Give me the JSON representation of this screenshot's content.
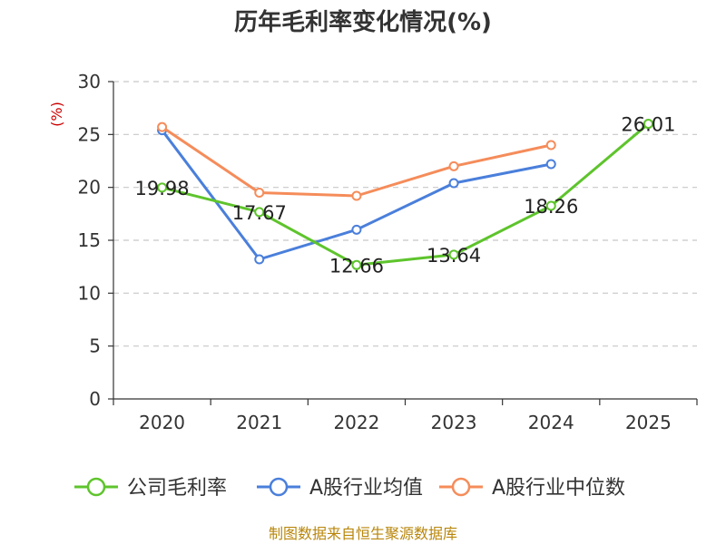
{
  "chart_data": {
    "type": "line",
    "title": "历年毛利率变化情况(%)",
    "ylabel": "(%)",
    "xlabel": "",
    "categories": [
      "2020",
      "2021",
      "2022",
      "2023",
      "2024",
      "2025"
    ],
    "ylim": [
      0,
      30
    ],
    "yticks": [
      0,
      5,
      10,
      15,
      20,
      25,
      30
    ],
    "grid": true,
    "legend_position": "bottom",
    "series": [
      {
        "name": "公司毛利率",
        "color": "#5ec42c",
        "values": [
          19.98,
          17.67,
          12.66,
          13.64,
          18.26,
          26.01
        ],
        "labels": [
          "19.98",
          "17.67",
          "12.66",
          "13.64",
          "18.26",
          "26.01"
        ]
      },
      {
        "name": "A股行业均值",
        "color": "#4a7fdb",
        "values": [
          25.4,
          13.2,
          16.0,
          20.4,
          22.2,
          null
        ]
      },
      {
        "name": "A股行业中位数",
        "color": "#f58c5a",
        "values": [
          25.7,
          19.5,
          19.2,
          22.0,
          24.0,
          null
        ]
      }
    ]
  },
  "footer": {
    "source": "制图数据来自恒生聚源数据库"
  }
}
